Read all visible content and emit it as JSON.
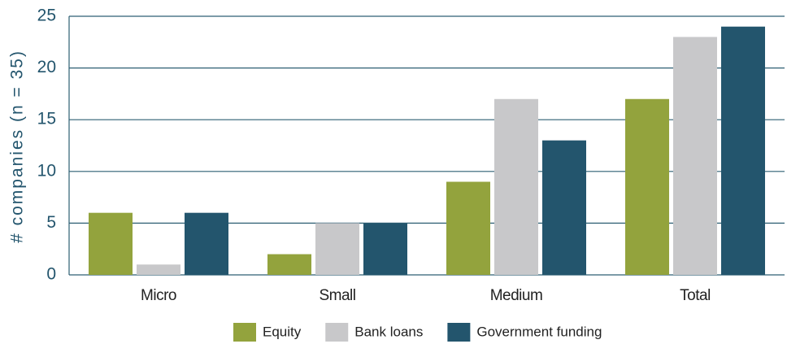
{
  "chart_data": {
    "type": "bar",
    "y_label": "# companies (n = 35)",
    "categories": [
      "Micro",
      "Small",
      "Medium",
      "Total"
    ],
    "series": [
      {
        "name": "Equity",
        "color": "#93a33d",
        "values": [
          6,
          2,
          9,
          17
        ]
      },
      {
        "name": "Bank loans",
        "color": "#c8c8ca",
        "values": [
          1,
          5,
          17,
          23
        ]
      },
      {
        "name": "Government funding",
        "color": "#23556d",
        "values": [
          6,
          5,
          13,
          24
        ]
      }
    ],
    "ylim": [
      0,
      25
    ],
    "yticks": [
      0,
      5,
      10,
      15,
      20,
      25
    ],
    "grid": true,
    "legend": "bottom"
  }
}
